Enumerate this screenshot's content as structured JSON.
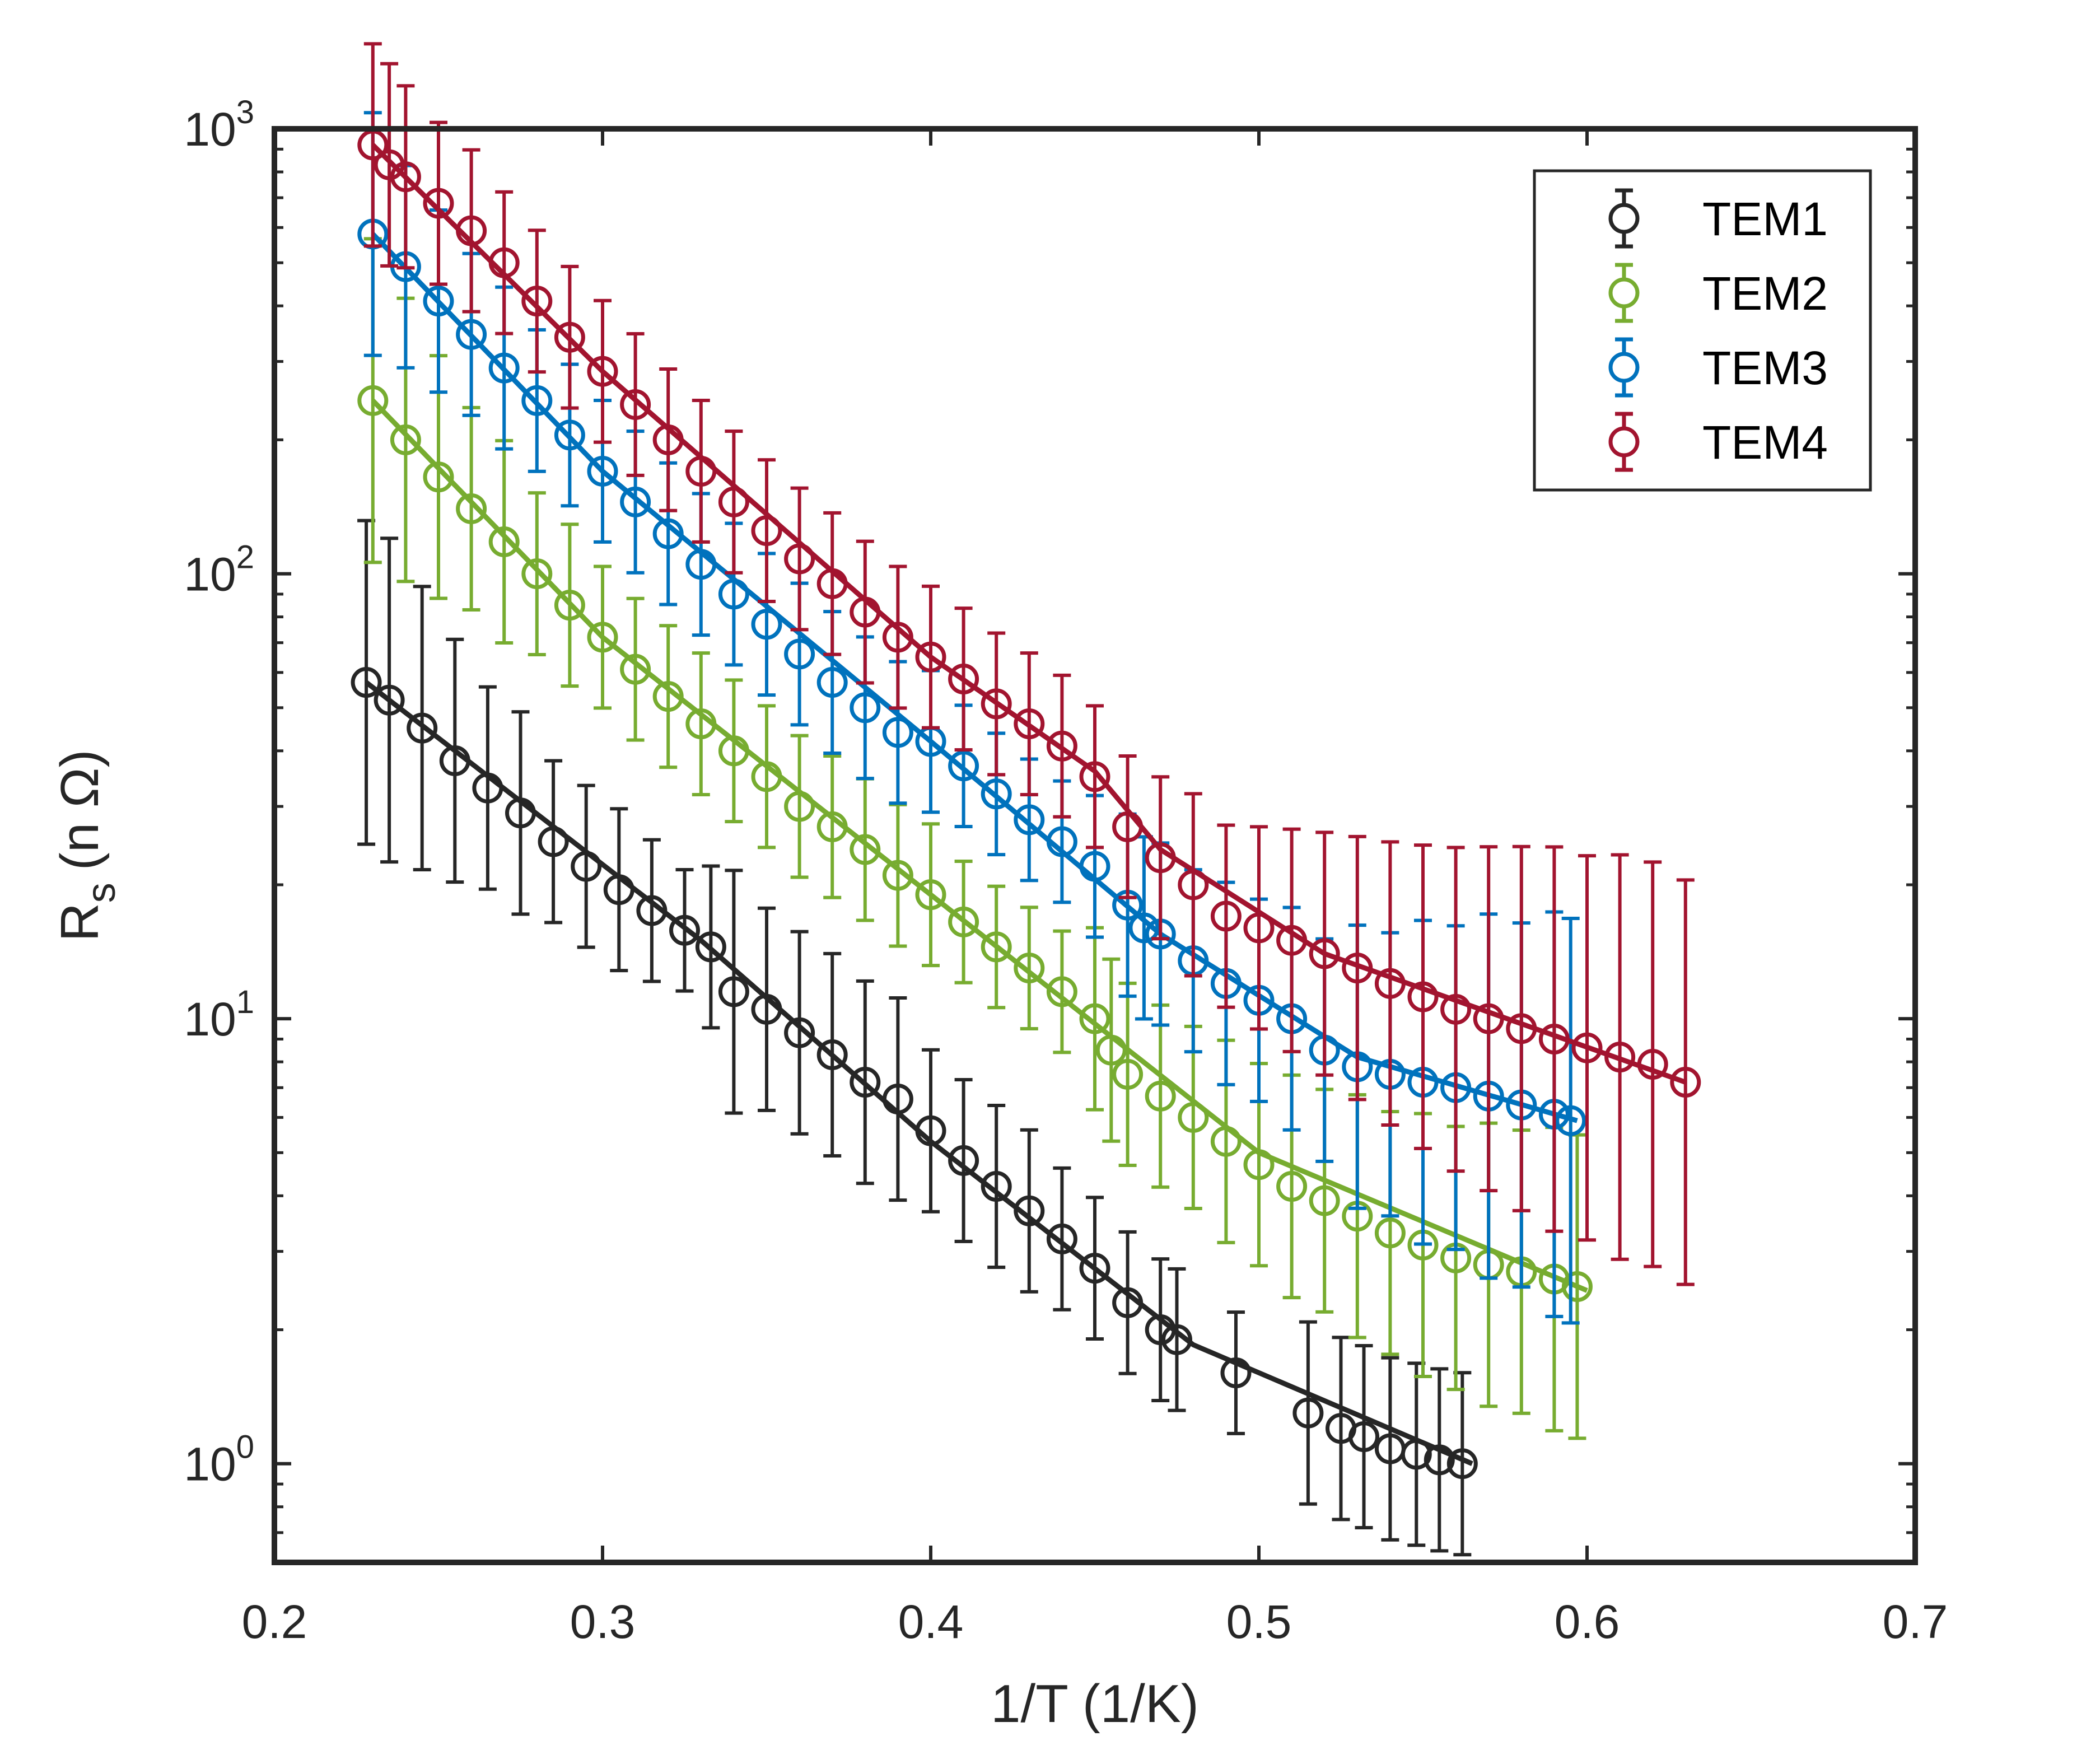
{
  "chart_data": {
    "type": "scatter",
    "title": "",
    "xlabel": "1/T (1/K)",
    "ylabel": {
      "main": "R",
      "sub": "s",
      "unit": "(n Ω)"
    },
    "xscale": "linear",
    "yscale": "log",
    "xlim": [
      0.2,
      0.7
    ],
    "ylim": [
      0.6,
      1000
    ],
    "x_ticks": [
      0.2,
      0.3,
      0.4,
      0.5,
      0.6,
      0.7
    ],
    "x_tick_labels": [
      "0.2",
      "0.3",
      "0.4",
      "0.5",
      "0.6",
      "0.7"
    ],
    "y_ticks": [
      1,
      10,
      100,
      1000
    ],
    "y_tick_labels": [
      {
        "base": "10",
        "exp": "0"
      },
      {
        "base": "10",
        "exp": "1"
      },
      {
        "base": "10",
        "exp": "2"
      },
      {
        "base": "10",
        "exp": "3"
      }
    ],
    "legend_position": "top-right",
    "markers": "open-circle-with-error-bars",
    "series": [
      {
        "name": "TEM1",
        "color": "#262626",
        "x": [
          0.228,
          0.235,
          0.245,
          0.255,
          0.265,
          0.275,
          0.285,
          0.295,
          0.305,
          0.315,
          0.325,
          0.333,
          0.34,
          0.35,
          0.36,
          0.37,
          0.38,
          0.39,
          0.4,
          0.41,
          0.42,
          0.43,
          0.44,
          0.45,
          0.46,
          0.47,
          0.475,
          0.493,
          0.515,
          0.525,
          0.532,
          0.54,
          0.548,
          0.555,
          0.562
        ],
        "y": [
          57,
          52,
          45,
          38,
          33,
          29,
          25,
          22,
          19.5,
          17.5,
          15.8,
          14.5,
          11.5,
          10.5,
          9.3,
          8.3,
          7.2,
          6.6,
          5.6,
          4.8,
          4.2,
          3.7,
          3.2,
          2.75,
          2.3,
          2.0,
          1.9,
          1.6,
          1.3,
          1.2,
          1.15,
          1.08,
          1.05,
          1.02,
          1.0
        ],
        "err": [
          0.8,
          0.8,
          0.7,
          0.6,
          0.5,
          0.5,
          0.4,
          0.4,
          0.4,
          0.35,
          0.3,
          0.4,
          0.6,
          0.5,
          0.5,
          0.5,
          0.5,
          0.5,
          0.4,
          0.4,
          0.4,
          0.4,
          0.35,
          0.35,
          0.35,
          0.35,
          0.35,
          0.3,
          0.45,
          0.45,
          0.45,
          0.45,
          0.45,
          0.45,
          0.45
        ],
        "fit_x": [
          0.228,
          0.33,
          0.4,
          0.48,
          0.565
        ],
        "fit_y": [
          57,
          15,
          5.3,
          1.85,
          1.0
        ]
      },
      {
        "name": "TEM2",
        "color": "#77ac30",
        "x": [
          0.23,
          0.24,
          0.25,
          0.26,
          0.27,
          0.28,
          0.29,
          0.3,
          0.31,
          0.32,
          0.33,
          0.34,
          0.35,
          0.36,
          0.37,
          0.38,
          0.39,
          0.4,
          0.41,
          0.42,
          0.43,
          0.44,
          0.45,
          0.455,
          0.46,
          0.47,
          0.48,
          0.49,
          0.5,
          0.51,
          0.52,
          0.53,
          0.54,
          0.55,
          0.56,
          0.57,
          0.58,
          0.59,
          0.597
        ],
        "y": [
          245,
          200,
          165,
          140,
          118,
          100,
          85,
          72,
          61,
          53,
          46,
          40,
          35,
          30,
          27,
          24,
          21,
          19,
          16.5,
          14.5,
          13,
          11.5,
          10,
          8.5,
          7.5,
          6.7,
          6.0,
          5.3,
          4.7,
          4.2,
          3.9,
          3.6,
          3.3,
          3.1,
          2.9,
          2.8,
          2.7,
          2.6,
          2.5
        ],
        "err": [
          0.8,
          0.7,
          0.6,
          0.5,
          0.5,
          0.4,
          0.4,
          0.35,
          0.35,
          0.35,
          0.35,
          0.35,
          0.35,
          0.35,
          0.35,
          0.35,
          0.35,
          0.35,
          0.3,
          0.3,
          0.3,
          0.3,
          0.45,
          0.45,
          0.45,
          0.45,
          0.45,
          0.5,
          0.5,
          0.55,
          0.55,
          0.6,
          0.6,
          0.65,
          0.65,
          0.7,
          0.7,
          0.75,
          0.75
        ],
        "fit_x": [
          0.23,
          0.3,
          0.4,
          0.5,
          0.6
        ],
        "fit_y": [
          245,
          72,
          19,
          5.0,
          2.45
        ]
      },
      {
        "name": "TEM3",
        "color": "#0072bd",
        "x": [
          0.23,
          0.24,
          0.25,
          0.26,
          0.27,
          0.28,
          0.29,
          0.3,
          0.31,
          0.32,
          0.33,
          0.34,
          0.35,
          0.36,
          0.37,
          0.38,
          0.39,
          0.4,
          0.41,
          0.42,
          0.43,
          0.44,
          0.45,
          0.46,
          0.465,
          0.47,
          0.48,
          0.49,
          0.5,
          0.51,
          0.52,
          0.53,
          0.54,
          0.55,
          0.56,
          0.57,
          0.58,
          0.59,
          0.595
        ],
        "y": [
          580,
          490,
          410,
          345,
          290,
          245,
          205,
          170,
          145,
          123,
          105,
          90,
          77,
          66,
          57,
          50,
          44,
          42,
          37,
          32,
          28,
          25,
          22,
          18,
          16,
          15.5,
          13.5,
          12,
          11,
          10,
          8.5,
          7.8,
          7.5,
          7.2,
          7.0,
          6.7,
          6.4,
          6.1,
          5.9
        ],
        "err": [
          0.6,
          0.5,
          0.45,
          0.4,
          0.4,
          0.35,
          0.35,
          0.35,
          0.35,
          0.35,
          0.35,
          0.35,
          0.35,
          0.35,
          0.35,
          0.35,
          0.35,
          0.35,
          0.3,
          0.3,
          0.3,
          0.3,
          0.35,
          0.45,
          0.45,
          0.45,
          0.45,
          0.5,
          0.5,
          0.55,
          0.55,
          0.7,
          0.7,
          0.8,
          0.8,
          0.9,
          0.9,
          1.0,
          1.0
        ],
        "fit_x": [
          0.23,
          0.3,
          0.4,
          0.47,
          0.53,
          0.597
        ],
        "fit_y": [
          580,
          170,
          42,
          15.5,
          8.2,
          5.9
        ]
      },
      {
        "name": "TEM4",
        "color": "#a2142f",
        "x": [
          0.23,
          0.235,
          0.24,
          0.25,
          0.26,
          0.27,
          0.28,
          0.29,
          0.3,
          0.31,
          0.32,
          0.33,
          0.34,
          0.35,
          0.36,
          0.37,
          0.38,
          0.39,
          0.4,
          0.41,
          0.42,
          0.43,
          0.44,
          0.45,
          0.46,
          0.47,
          0.48,
          0.49,
          0.5,
          0.51,
          0.52,
          0.53,
          0.54,
          0.55,
          0.56,
          0.57,
          0.58,
          0.59,
          0.6,
          0.61,
          0.62,
          0.63
        ],
        "y": [
          920,
          830,
          780,
          680,
          590,
          500,
          410,
          340,
          285,
          240,
          200,
          170,
          145,
          125,
          108,
          95,
          82,
          72,
          65,
          58,
          51,
          46,
          41,
          35,
          27,
          23,
          20,
          17,
          16,
          15,
          14,
          13,
          12,
          11.2,
          10.5,
          10,
          9.5,
          9,
          8.6,
          8.2,
          7.9,
          7.2
        ],
        "err": [
          0.5,
          0.5,
          0.45,
          0.4,
          0.4,
          0.35,
          0.35,
          0.35,
          0.35,
          0.35,
          0.35,
          0.35,
          0.35,
          0.35,
          0.35,
          0.35,
          0.35,
          0.35,
          0.35,
          0.35,
          0.35,
          0.35,
          0.35,
          0.35,
          0.35,
          0.4,
          0.45,
          0.45,
          0.5,
          0.55,
          0.6,
          0.65,
          0.7,
          0.75,
          0.8,
          0.85,
          0.9,
          0.95,
          0.95,
          1.0,
          1.0,
          1.0
        ],
        "fit_x": [
          0.23,
          0.3,
          0.4,
          0.45,
          0.47,
          0.52,
          0.63
        ],
        "fit_y": [
          920,
          285,
          65,
          36,
          24,
          14,
          7.2
        ]
      }
    ]
  }
}
